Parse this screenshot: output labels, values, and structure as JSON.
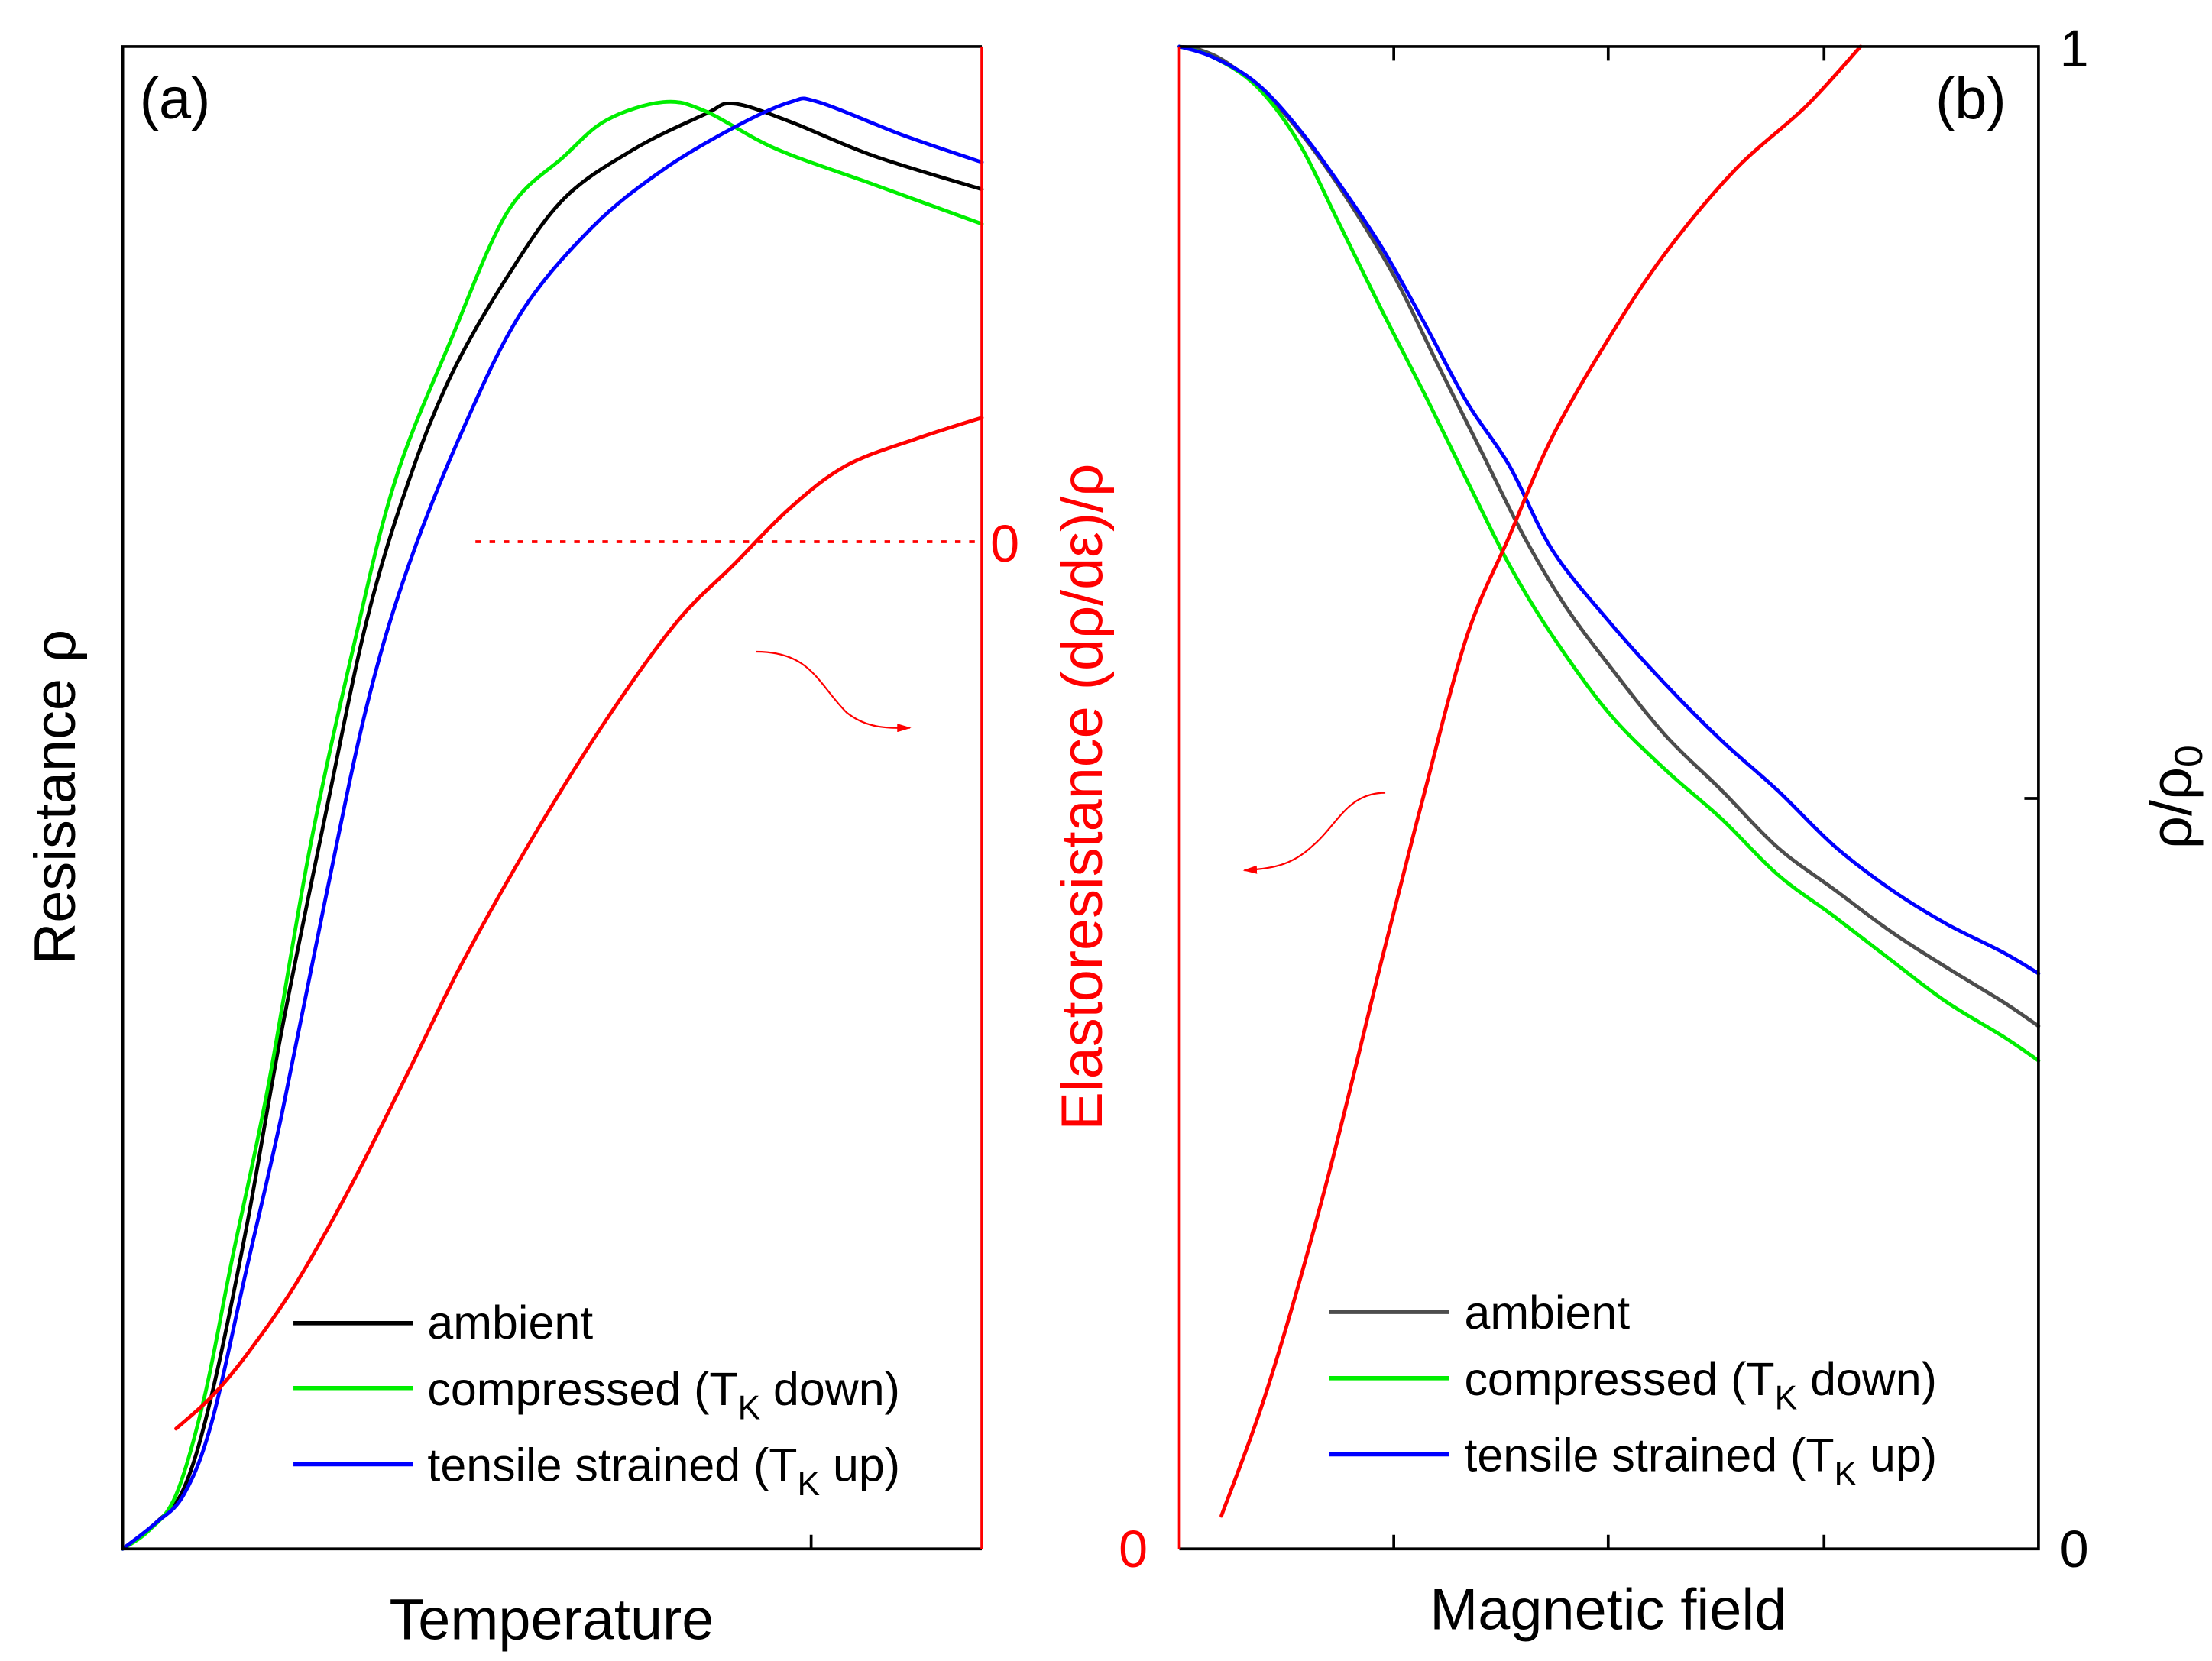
{
  "colors": {
    "ambient_a": "#000000",
    "ambient_b": "#4d4d4d",
    "compressed": "#00ee00",
    "tensile": "#0000ff",
    "elastoresistance": "#ff0000"
  },
  "chart_data": [
    {
      "type": "line",
      "panel_label": "(a)",
      "xlabel": "Temperature",
      "ylabel": "Resistance ρ",
      "y2label": "Elastoresistance (dρ/dε)/ρ",
      "xlim": [
        0,
        1
      ],
      "ylim": [
        0,
        1
      ],
      "y2lim": [
        -0.67,
        0.33
      ],
      "y2_tick_labels": [
        {
          "value": 0,
          "label": "0"
        }
      ],
      "y2_zero_line": "dotted",
      "grid": false,
      "legend": "bottom-right",
      "series": [
        {
          "name": "ambient",
          "color": "#000000",
          "axis": "left",
          "x": [
            0,
            0.038,
            0.071,
            0.103,
            0.144,
            0.185,
            0.235,
            0.284,
            0.333,
            0.383,
            0.448,
            0.514,
            0.596,
            0.678,
            0.711,
            0.777,
            0.875,
            1.0
          ],
          "y": [
            0,
            0.017,
            0.04,
            0.101,
            0.214,
            0.345,
            0.486,
            0.618,
            0.711,
            0.782,
            0.847,
            0.899,
            0.932,
            0.955,
            0.962,
            0.95,
            0.927,
            0.905
          ]
        },
        {
          "name": "compressed (T_K down)",
          "color": "#00ee00",
          "axis": "left",
          "x": [
            0,
            0.03,
            0.062,
            0.095,
            0.128,
            0.169,
            0.218,
            0.268,
            0.317,
            0.383,
            0.448,
            0.514,
            0.563,
            0.629,
            0.678,
            0.76,
            0.875,
            1.0
          ],
          "y": [
            0,
            0.012,
            0.036,
            0.101,
            0.195,
            0.307,
            0.467,
            0.599,
            0.711,
            0.806,
            0.89,
            0.927,
            0.951,
            0.963,
            0.957,
            0.932,
            0.908,
            0.882
          ]
        },
        {
          "name": "tensile strained (T_K up)",
          "color": "#0000ff",
          "axis": "left",
          "x": [
            0,
            0.038,
            0.071,
            0.103,
            0.144,
            0.185,
            0.235,
            0.284,
            0.333,
            0.399,
            0.465,
            0.547,
            0.629,
            0.711,
            0.777,
            0.81,
            0.908,
            1.0
          ],
          "y": [
            0,
            0.017,
            0.036,
            0.083,
            0.186,
            0.289,
            0.43,
            0.561,
            0.655,
            0.749,
            0.824,
            0.88,
            0.918,
            0.946,
            0.963,
            0.963,
            0.941,
            0.923
          ]
        },
        {
          "color": "#ff0000",
          "axis": "right",
          "x": [
            0.062,
            0.103,
            0.144,
            0.201,
            0.266,
            0.332,
            0.397,
            0.481,
            0.563,
            0.645,
            0.711,
            0.777,
            0.842,
            0.924,
            1.0
          ],
          "y": [
            -0.59,
            -0.569,
            -0.541,
            -0.494,
            -0.428,
            -0.353,
            -0.278,
            -0.193,
            -0.118,
            -0.053,
            -0.015,
            0.023,
            0.051,
            0.069,
            0.083
          ]
        }
      ],
      "annotations": [
        {
          "type": "arrow",
          "direction": "right-axis"
        }
      ]
    },
    {
      "type": "line",
      "panel_label": "(b)",
      "xlabel": "Magnetic field",
      "ylabel_right": "ρ/ρ0",
      "xlim": [
        0,
        1
      ],
      "ylim": [
        0,
        1
      ],
      "y_tick_labels": [
        {
          "value": 0,
          "label": "0"
        },
        {
          "value": 1,
          "label": "1"
        }
      ],
      "y_ticks": [
        0,
        0.5,
        1
      ],
      "x_ticks": [
        0.25,
        0.5,
        0.75
      ],
      "y2lim": [
        0,
        1
      ],
      "y2_tick_labels": [
        {
          "value": 0,
          "label": "0"
        }
      ],
      "grid": false,
      "legend": "bottom-right",
      "series": [
        {
          "name": "ambient",
          "color": "#4d4d4d",
          "axis": "right",
          "x": [
            0,
            0.023,
            0.056,
            0.105,
            0.154,
            0.204,
            0.253,
            0.302,
            0.351,
            0.401,
            0.45,
            0.499,
            0.565,
            0.631,
            0.696,
            0.762,
            0.828,
            0.893,
            0.959,
            1.0
          ],
          "y": [
            1,
            0.998,
            0.989,
            0.966,
            0.933,
            0.891,
            0.844,
            0.787,
            0.731,
            0.674,
            0.627,
            0.589,
            0.542,
            0.505,
            0.467,
            0.439,
            0.411,
            0.387,
            0.364,
            0.348
          ]
        },
        {
          "name": "compressed (T_K down)",
          "color": "#00ee00",
          "axis": "right",
          "x": [
            0,
            0.039,
            0.089,
            0.138,
            0.187,
            0.236,
            0.286,
            0.335,
            0.384,
            0.434,
            0.499,
            0.565,
            0.631,
            0.696,
            0.762,
            0.828,
            0.893,
            0.959,
            1.0
          ],
          "y": [
            1,
            0.993,
            0.974,
            0.937,
            0.881,
            0.824,
            0.768,
            0.711,
            0.655,
            0.608,
            0.557,
            0.519,
            0.486,
            0.449,
            0.421,
            0.392,
            0.364,
            0.341,
            0.325
          ]
        },
        {
          "name": "tensile strained (T_K up)",
          "color": "#0000ff",
          "axis": "right",
          "x": [
            0,
            0.039,
            0.089,
            0.138,
            0.187,
            0.236,
            0.286,
            0.335,
            0.384,
            0.434,
            0.499,
            0.565,
            0.631,
            0.696,
            0.762,
            0.828,
            0.893,
            0.959,
            1.0
          ],
          "y": [
            1,
            0.993,
            0.976,
            0.946,
            0.908,
            0.866,
            0.815,
            0.763,
            0.721,
            0.665,
            0.618,
            0.576,
            0.538,
            0.505,
            0.468,
            0.439,
            0.416,
            0.397,
            0.383
          ]
        },
        {
          "color": "#ff0000",
          "axis": "left",
          "x": [
            0.049,
            0.105,
            0.171,
            0.236,
            0.286,
            0.335,
            0.384,
            0.434,
            0.499,
            0.565,
            0.647,
            0.729,
            0.793
          ],
          "y": [
            0.022,
            0.111,
            0.243,
            0.393,
            0.505,
            0.608,
            0.674,
            0.74,
            0.805,
            0.862,
            0.918,
            0.96,
            1.0
          ]
        }
      ],
      "annotations": [
        {
          "type": "arrow",
          "direction": "left-axis"
        }
      ]
    }
  ],
  "legend": {
    "ambient": "ambient",
    "compressed_pre": "compressed (T",
    "compressed_sub": "K",
    "compressed_post": " down)",
    "tensile_pre": "tensile strained (T",
    "tensile_sub": "K",
    "tensile_post": " up)"
  },
  "labels": {
    "panel_a": "(a)",
    "panel_b": "(b)",
    "temperature": "Temperature",
    "resistance": "Resistance ρ",
    "elastoresistance": "Elastoresistance (dρ/dε)/ρ",
    "magnetic_field": "Magnetic field",
    "rho_ratio_main": "ρ/ρ",
    "rho_ratio_sub": "0",
    "zero_a": "0",
    "zero_b_left": "0",
    "zero_b_right": "0",
    "one_b_right": "1"
  }
}
